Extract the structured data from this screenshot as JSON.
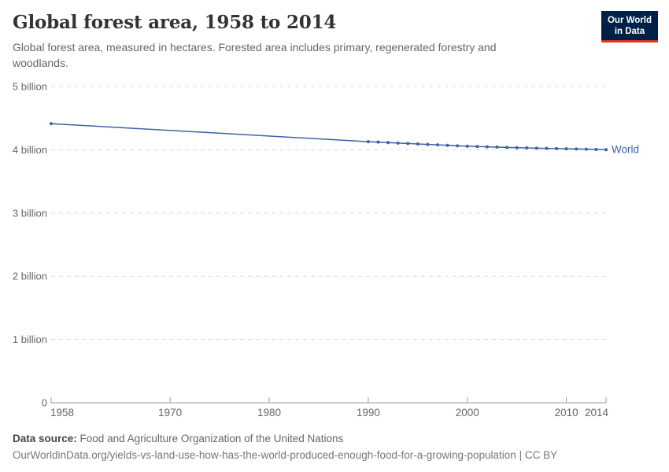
{
  "header": {
    "title": "Global forest area, 1958 to 2014",
    "subtitle": "Global forest area, measured in hectares. Forested area includes primary, regenerated forestry and woodlands."
  },
  "logo": {
    "line1": "Our World",
    "line2": "in Data"
  },
  "footer": {
    "source_label": "Data source:",
    "source_text": "Food and Agriculture Organization of the United Nations",
    "url_line": "OurWorldinData.org/yields-vs-land-use-how-has-the-world-produced-enough-food-for-a-growing-population | CC BY"
  },
  "colors": {
    "series_blue": "#3d62a5",
    "grid": "#dcdcdc",
    "axis": "#999999",
    "tick_label": "#666666",
    "logo_bg": "#002147",
    "logo_red": "#dc3022"
  },
  "chart_data": {
    "type": "line",
    "title": "Global forest area, 1958 to 2014",
    "xlabel": "",
    "ylabel": "",
    "unit": "hectares",
    "xlim": [
      1958,
      2014
    ],
    "ylim": [
      0,
      5000000000
    ],
    "grid": "horizontal-dashed",
    "legend_position": "end-of-line",
    "xticks": [
      1958,
      1970,
      1980,
      1990,
      2000,
      2010,
      2014
    ],
    "yticks": [
      {
        "value": 0,
        "label": "0"
      },
      {
        "value": 1000000000,
        "label": "1 billion"
      },
      {
        "value": 2000000000,
        "label": "2 billion"
      },
      {
        "value": 3000000000,
        "label": "3 billion"
      },
      {
        "value": 4000000000,
        "label": "4 billion"
      },
      {
        "value": 5000000000,
        "label": "5 billion"
      }
    ],
    "series": [
      {
        "name": "World",
        "color": "#3d62a5",
        "points": [
          [
            1958,
            4413000000
          ],
          [
            1990,
            4128269000
          ],
          [
            1991,
            4121002000
          ],
          [
            1992,
            4113736000
          ],
          [
            1993,
            4106469000
          ],
          [
            1994,
            4099202000
          ],
          [
            1995,
            4091936000
          ],
          [
            1996,
            4084669000
          ],
          [
            1997,
            4077402000
          ],
          [
            1998,
            4070135000
          ],
          [
            1999,
            4062869000
          ],
          [
            2000,
            4055602000
          ],
          [
            2001,
            4051030000
          ],
          [
            2002,
            4046458000
          ],
          [
            2003,
            4041887000
          ],
          [
            2004,
            4037315000
          ],
          [
            2005,
            4032743000
          ],
          [
            2006,
            4029329000
          ],
          [
            2007,
            4025915000
          ],
          [
            2008,
            4022501000
          ],
          [
            2009,
            4019087000
          ],
          [
            2010,
            4015673000
          ],
          [
            2011,
            4012365000
          ],
          [
            2012,
            4009057000
          ],
          [
            2013,
            4005750000
          ],
          [
            2014,
            4002442000
          ]
        ]
      }
    ]
  }
}
